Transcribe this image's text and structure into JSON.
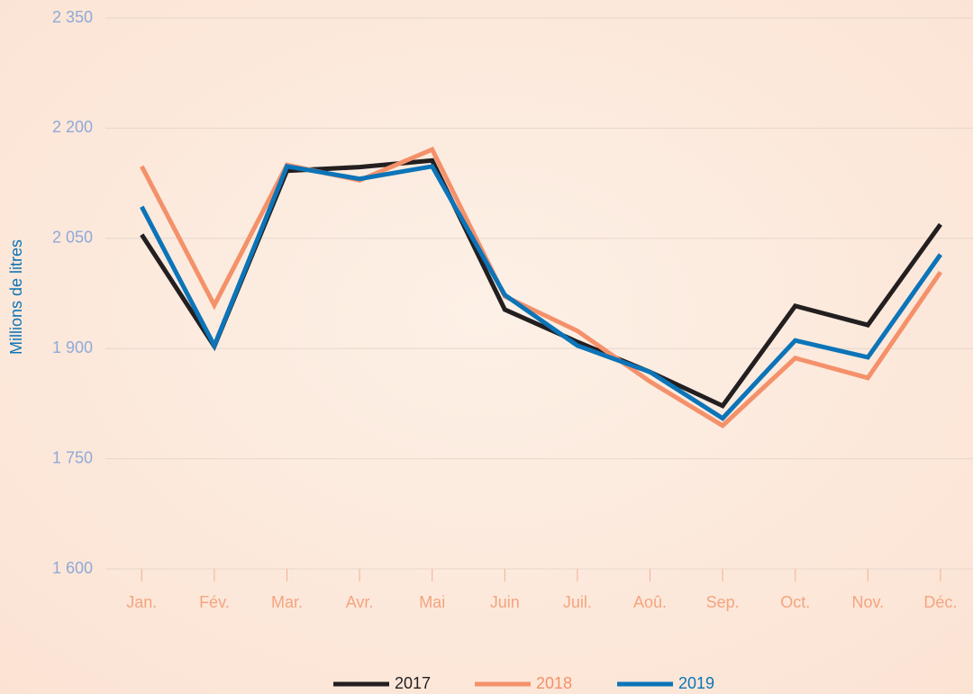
{
  "chart_data": {
    "type": "line",
    "y_label": "Millions de litres",
    "categories": [
      "Jan.",
      "Fév.",
      "Mar.",
      "Avr.",
      "Mai",
      "Juin",
      "Juil.",
      "Aoû.",
      "Sep.",
      "Oct.",
      "Nov.",
      "Déc."
    ],
    "series": [
      {
        "name": "2017",
        "color": "#231f20",
        "values": [
          2055,
          1903,
          2142,
          2147,
          2156,
          1953,
          1909,
          1868,
          1822,
          1958,
          1932,
          2069
        ]
      },
      {
        "name": "2018",
        "color": "#f4916a",
        "values": [
          2148,
          1959,
          2150,
          2129,
          2171,
          1971,
          1924,
          1855,
          1795,
          1887,
          1860,
          2004
        ]
      },
      {
        "name": "2019",
        "color": "#0c74b8",
        "values": [
          2093,
          1904,
          2148,
          2131,
          2148,
          1973,
          1904,
          1868,
          1805,
          1911,
          1888,
          2028
        ]
      }
    ],
    "ylim": [
      1600,
      2350
    ],
    "yticks": [
      {
        "value": 1600,
        "label": "1 600"
      },
      {
        "value": 1750,
        "label": "1 750"
      },
      {
        "value": 1900,
        "label": "1 900"
      },
      {
        "value": 2050,
        "label": "2 050"
      },
      {
        "value": 2200,
        "label": "2 200"
      },
      {
        "value": 2350,
        "label": "2 350"
      }
    ],
    "grid": true,
    "legend": "bottom"
  }
}
